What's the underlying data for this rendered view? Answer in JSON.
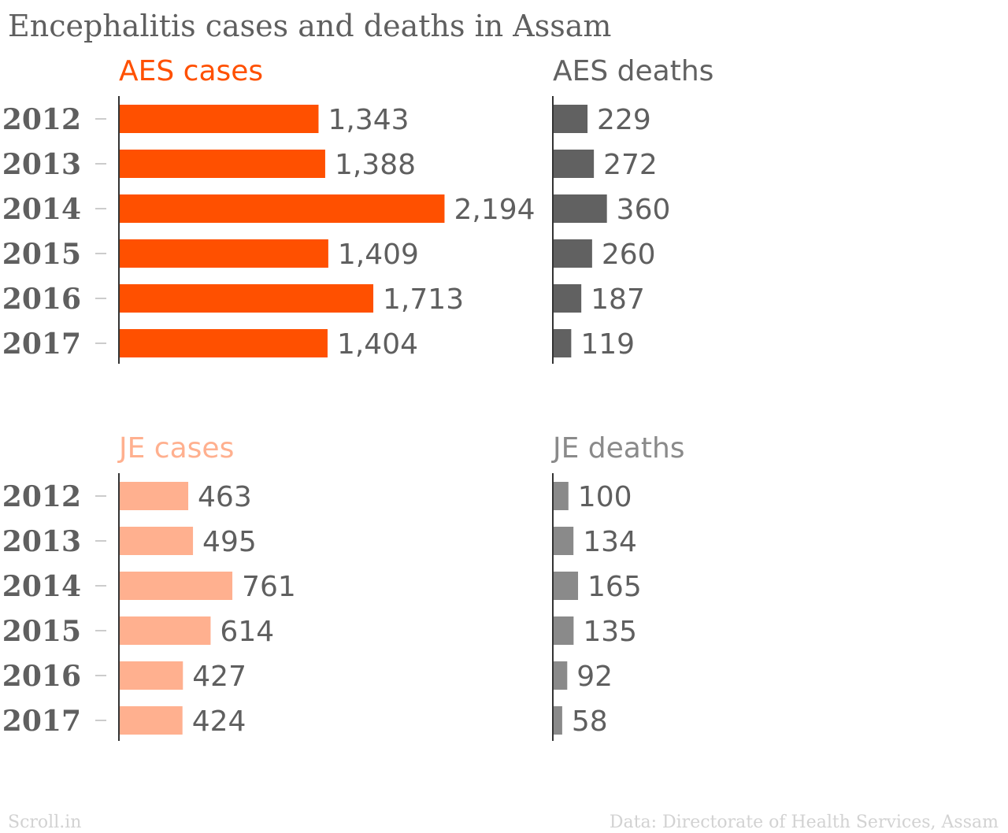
{
  "title": "Encephalitis cases and deaths in Assam",
  "footer": {
    "brand": "Scroll.in",
    "source": "Data: Directorate of Health Services, Assam"
  },
  "colors": {
    "aes_cases": "#ff5000",
    "je_cases": "#ffb08f",
    "aes_deaths": "#616161",
    "je_deaths": "#8a8a8a",
    "text": "#5f5f5f",
    "axis": "#333333",
    "tick": "#cccccc",
    "footer": "#d2d2d2"
  },
  "chart_data": [
    {
      "type": "bar",
      "orientation": "horizontal",
      "title": "AES cases",
      "categories": [
        "2012",
        "2013",
        "2014",
        "2015",
        "2016",
        "2017"
      ],
      "values": [
        1343,
        1388,
        2194,
        1409,
        1713,
        1404
      ],
      "value_labels": [
        "1,343",
        "1,388",
        "2,194",
        "1,409",
        "1,713",
        "1,404"
      ],
      "color": "#ff5000"
    },
    {
      "type": "bar",
      "orientation": "horizontal",
      "title": "AES deaths",
      "categories": [
        "2012",
        "2013",
        "2014",
        "2015",
        "2016",
        "2017"
      ],
      "values": [
        229,
        272,
        360,
        260,
        187,
        119
      ],
      "value_labels": [
        "229",
        "272",
        "360",
        "260",
        "187",
        "119"
      ],
      "color": "#616161"
    },
    {
      "type": "bar",
      "orientation": "horizontal",
      "title": "JE cases",
      "categories": [
        "2012",
        "2013",
        "2014",
        "2015",
        "2016",
        "2017"
      ],
      "values": [
        463,
        495,
        761,
        614,
        427,
        424
      ],
      "value_labels": [
        "463",
        "495",
        "761",
        "614",
        "427",
        "424"
      ],
      "color": "#ffb08f"
    },
    {
      "type": "bar",
      "orientation": "horizontal",
      "title": "JE deaths",
      "categories": [
        "2012",
        "2013",
        "2014",
        "2015",
        "2016",
        "2017"
      ],
      "values": [
        100,
        134,
        165,
        135,
        92,
        58
      ],
      "value_labels": [
        "100",
        "134",
        "165",
        "135",
        "92",
        "58"
      ],
      "color": "#8a8a8a"
    }
  ]
}
